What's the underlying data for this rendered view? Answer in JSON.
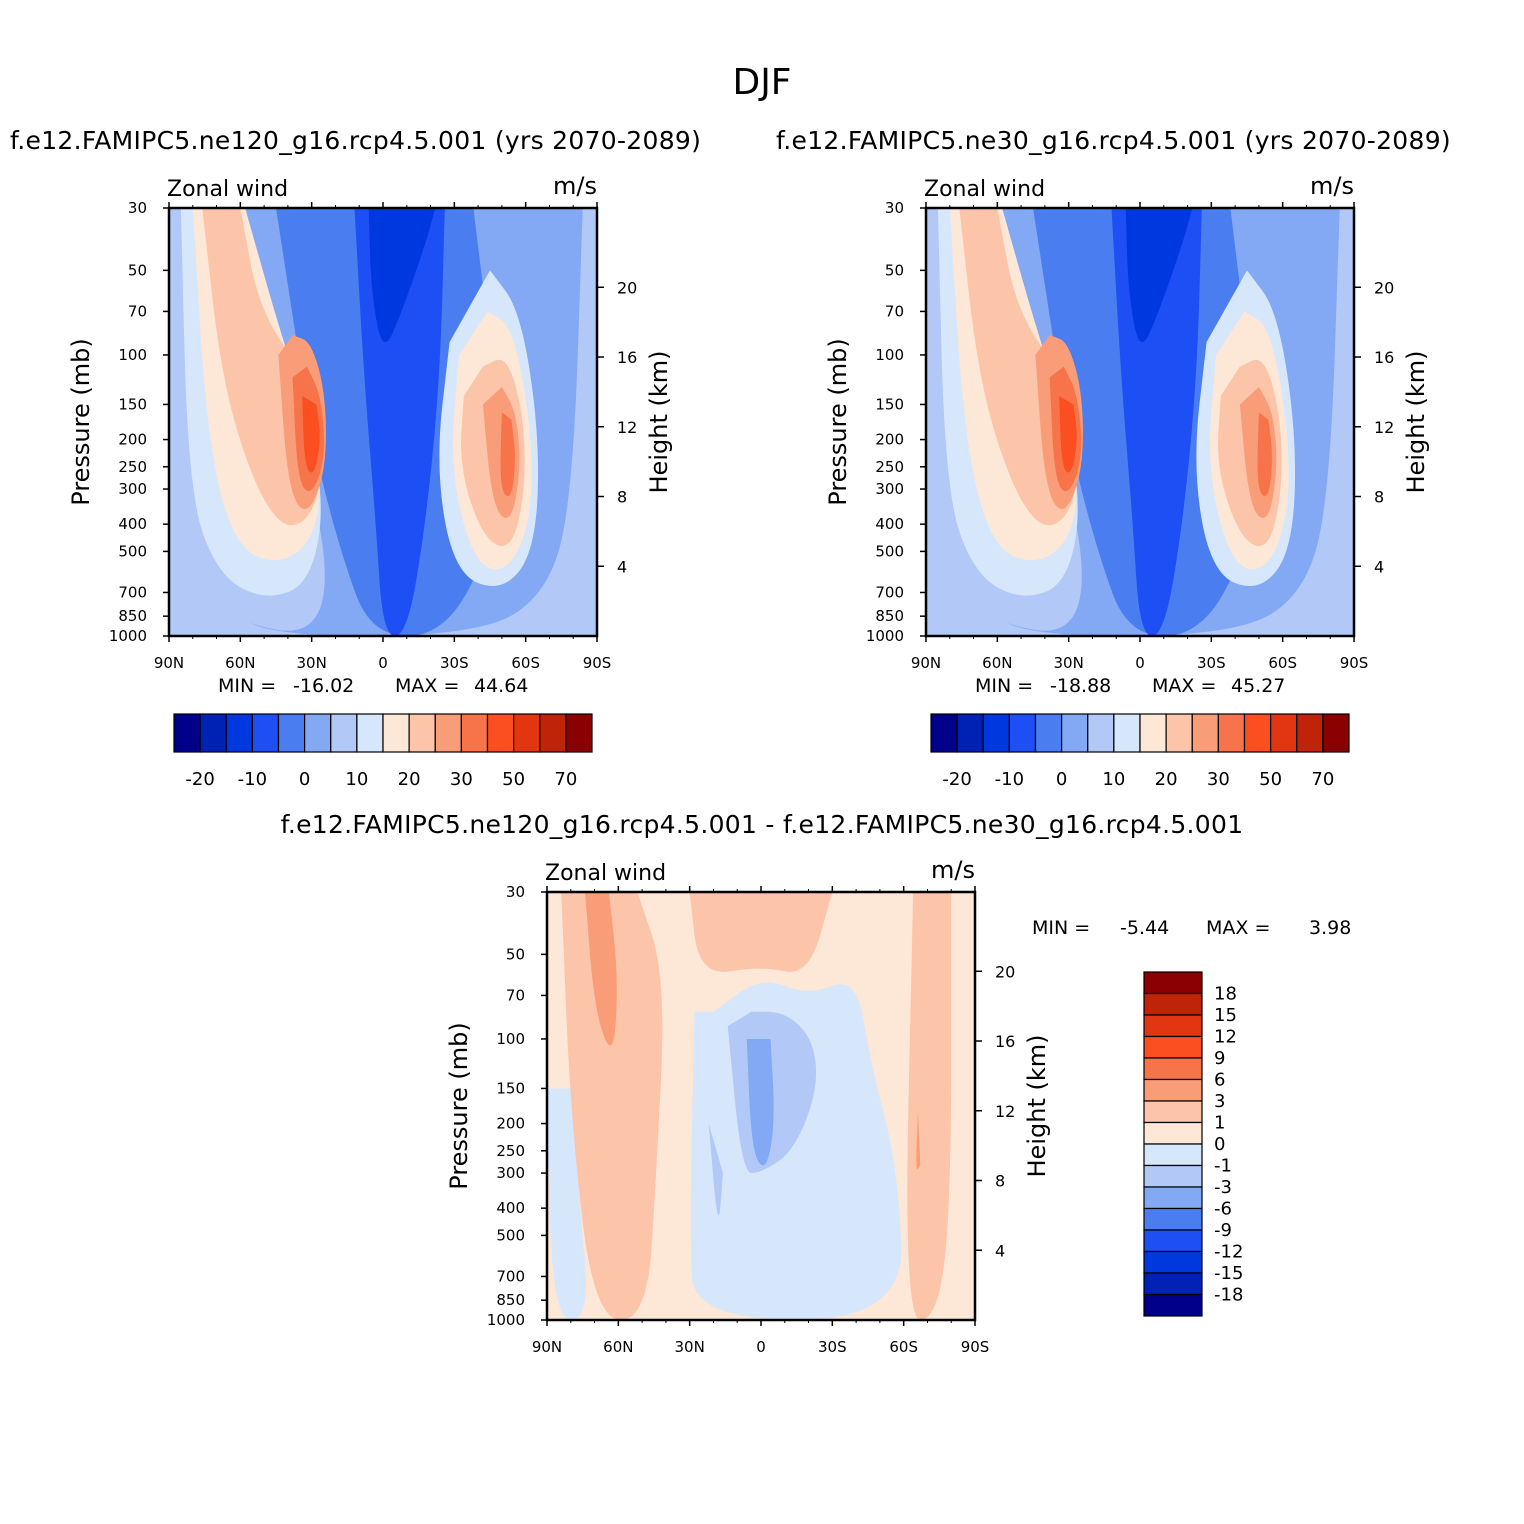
{
  "title": "DJF",
  "colors": {
    "main_levels": [
      "#00008b",
      "#0022b4",
      "#0038e0",
      "#1e4ff5",
      "#4a7ef0",
      "#84a9f4",
      "#b2c9f7",
      "#d6e7fc",
      "#fde7d6",
      "#fcc4a8",
      "#f89d78",
      "#f7744a",
      "#fb4f22",
      "#e23512",
      "#bf2308",
      "#8b0000"
    ],
    "diff_levels": [
      "#00008b",
      "#0022b4",
      "#0038e0",
      "#1e4ff5",
      "#4a7ef0",
      "#84a9f4",
      "#b2c9f7",
      "#d6e7fc",
      "#fde7d6",
      "#fcc4a8",
      "#f89d78",
      "#f7744a",
      "#fb4f22",
      "#e23512",
      "#bf2308",
      "#8b0000"
    ]
  },
  "panels": [
    {
      "id": "ne120",
      "subtitle": "f.e12.FAMIPC5.ne120_g16.rcp4.5.001 (yrs 2070-2089)",
      "left_title": "Zonal wind",
      "units": "m/s",
      "min_label": "MIN =",
      "min_value": "-16.02",
      "max_label": "MAX =",
      "max_value": "44.64",
      "colorbar_labels": [
        "-20",
        "-10",
        "0",
        "10",
        "20",
        "30",
        "50",
        "70"
      ]
    },
    {
      "id": "ne30",
      "subtitle": "f.e12.FAMIPC5.ne30_g16.rcp4.5.001 (yrs 2070-2089)",
      "left_title": "Zonal wind",
      "units": "m/s",
      "min_label": "MIN =",
      "min_value": "-18.88",
      "max_label": "MAX =",
      "max_value": "45.27",
      "colorbar_labels": [
        "-20",
        "-10",
        "0",
        "10",
        "20",
        "30",
        "50",
        "70"
      ]
    },
    {
      "id": "diff",
      "subtitle": "f.e12.FAMIPC5.ne120_g16.rcp4.5.001 - f.e12.FAMIPC5.ne30_g16.rcp4.5.001",
      "left_title": "Zonal wind",
      "units": "m/s",
      "min_label": "MIN =",
      "min_value": "-5.44",
      "max_label": "MAX =",
      "max_value": "3.98",
      "colorbar_labels": [
        "18",
        "15",
        "12",
        "9",
        "6",
        "3",
        "1",
        "0",
        "-1",
        "-3",
        "-6",
        "-9",
        "-12",
        "-15",
        "-18"
      ]
    }
  ],
  "chart_data": [
    {
      "type": "heatmap",
      "title": "f.e12.FAMIPC5.ne120_g16.rcp4.5.001 (yrs 2070-2089)",
      "variable": "Zonal wind",
      "units": "m/s",
      "xlabel": "",
      "ylabel": "Pressure (mb)",
      "ylabel_right": "Height (km)",
      "x_ticks": [
        "90N",
        "60N",
        "30N",
        "0",
        "30S",
        "60S",
        "90S"
      ],
      "y_ticks": [
        30,
        50,
        70,
        100,
        150,
        200,
        250,
        300,
        400,
        500,
        700,
        850,
        1000
      ],
      "y_right_ticks": [
        20,
        16,
        12,
        8,
        4
      ],
      "y_scale": "log",
      "ylim": [
        1000,
        30
      ],
      "min": -16.02,
      "max": 44.64,
      "features": [
        {
          "kind": "jet",
          "lat": 30,
          "hemisphere": "N",
          "pressure_mb": 175,
          "value_range": "40-50"
        },
        {
          "kind": "jet",
          "lat": 52,
          "hemisphere": "S",
          "pressure_mb": 200,
          "value_range": "30-40"
        },
        {
          "kind": "easterly",
          "lat": 18,
          "hemisphere": "S",
          "pressure_mb": 30,
          "value_range": "-10 to -20"
        }
      ],
      "colorbar_levels": [
        -20,
        -15,
        -10,
        -5,
        0,
        5,
        10,
        15,
        20,
        25,
        30,
        40,
        50,
        60,
        70
      ]
    },
    {
      "type": "heatmap",
      "title": "f.e12.FAMIPC5.ne30_g16.rcp4.5.001 (yrs 2070-2089)",
      "variable": "Zonal wind",
      "units": "m/s",
      "xlabel": "",
      "ylabel": "Pressure (mb)",
      "ylabel_right": "Height (km)",
      "x_ticks": [
        "90N",
        "60N",
        "30N",
        "0",
        "30S",
        "60S",
        "90S"
      ],
      "y_ticks": [
        30,
        50,
        70,
        100,
        150,
        200,
        250,
        300,
        400,
        500,
        700,
        850,
        1000
      ],
      "y_right_ticks": [
        20,
        16,
        12,
        8,
        4
      ],
      "y_scale": "log",
      "ylim": [
        1000,
        30
      ],
      "min": -18.88,
      "max": 45.27,
      "features": [
        {
          "kind": "jet",
          "lat": 30,
          "hemisphere": "N",
          "pressure_mb": 175,
          "value_range": "40-50"
        },
        {
          "kind": "jet",
          "lat": 50,
          "hemisphere": "S",
          "pressure_mb": 200,
          "value_range": "30-40"
        },
        {
          "kind": "easterly",
          "lat": 15,
          "hemisphere": "S",
          "pressure_mb": 30,
          "value_range": "-15 to -20"
        }
      ],
      "colorbar_levels": [
        -20,
        -15,
        -10,
        -5,
        0,
        5,
        10,
        15,
        20,
        25,
        30,
        40,
        50,
        60,
        70
      ]
    },
    {
      "type": "heatmap",
      "title": "f.e12.FAMIPC5.ne120_g16.rcp4.5.001 - f.e12.FAMIPC5.ne30_g16.rcp4.5.001",
      "variable": "Zonal wind",
      "units": "m/s",
      "xlabel": "",
      "ylabel": "Pressure (mb)",
      "ylabel_right": "Height (km)",
      "x_ticks": [
        "90N",
        "60N",
        "30N",
        "0",
        "30S",
        "60S",
        "90S"
      ],
      "y_ticks": [
        30,
        50,
        70,
        100,
        150,
        200,
        250,
        300,
        400,
        500,
        700,
        850,
        1000
      ],
      "y_right_ticks": [
        20,
        16,
        12,
        8,
        4
      ],
      "y_scale": "log",
      "ylim": [
        1000,
        30
      ],
      "min": -5.44,
      "max": 3.98,
      "colorbar_levels": [
        -18,
        -15,
        -12,
        -9,
        -6,
        -3,
        -1,
        0,
        1,
        3,
        6,
        9,
        12,
        15,
        18
      ]
    }
  ],
  "axis_labels": {
    "pressure": "Pressure (mb)",
    "height": "Height (km)",
    "x_ticks": [
      "90N",
      "60N",
      "30N",
      "0",
      "30S",
      "60S",
      "90S"
    ],
    "p_ticks": [
      "30",
      "50",
      "70",
      "100",
      "150",
      "200",
      "250",
      "300",
      "400",
      "500",
      "700",
      "850",
      "1000"
    ],
    "h_ticks": [
      "20",
      "16",
      "12",
      "8",
      "4"
    ]
  }
}
